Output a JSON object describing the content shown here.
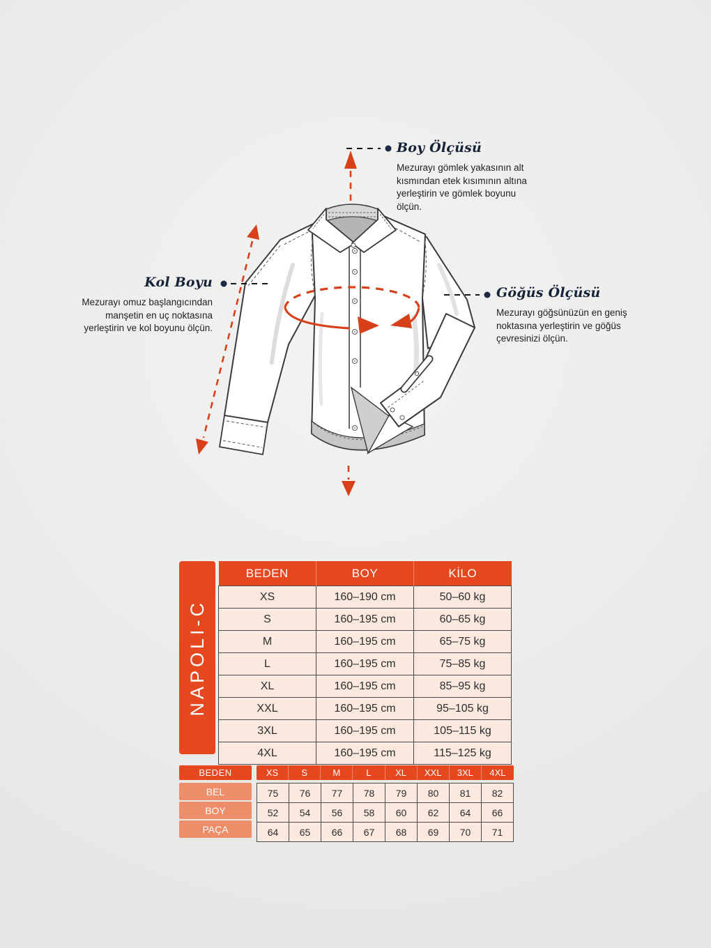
{
  "colors": {
    "accent": "#e5471f",
    "salmon": "#ee8d69",
    "cell_bg": "#fbe9e0",
    "arrow": "#d8401a",
    "dot": "#1c2a44",
    "heading": "#152238",
    "grid": "#4b4b4b",
    "text": "#2d2d2d"
  },
  "annotations": {
    "length": {
      "title": "Boy Ölçüsü",
      "lines": [
        "Mezurayı gömlek yakasının alt",
        "kısmından etek kısımının altına",
        "yerleştirin ve gömlek boyunu",
        "ölçün."
      ]
    },
    "sleeve": {
      "title": "Kol Boyu",
      "lines": [
        "Mezurayı omuz başlangıcından",
        "manşetin en uç noktasına",
        "yerleştirin ve kol boyunu ölçün."
      ]
    },
    "chest": {
      "title": "Göğüs Ölçüsü",
      "lines": [
        "Mezurayı göğsünüzün en geniş",
        "noktasına yerleştirin ve göğüs",
        "çevresinizi ölçün."
      ]
    }
  },
  "size_table": {
    "model": "NAPOLI-C",
    "headers": [
      "BEDEN",
      "BOY",
      "KİLO"
    ],
    "rows": [
      [
        "XS",
        "160–190 cm",
        "50–60 kg"
      ],
      [
        "S",
        "160–195 cm",
        "60–65 kg"
      ],
      [
        "M",
        "160–195 cm",
        "65–75 kg"
      ],
      [
        "L",
        "160–195 cm",
        "75–85 kg"
      ],
      [
        "XL",
        "160–195 cm",
        "85–95 kg"
      ],
      [
        "XXL",
        "160–195 cm",
        "95–105 kg"
      ],
      [
        "3XL",
        "160–195 cm",
        "105–115 kg"
      ],
      [
        "4XL",
        "160–195 cm",
        "115–125 kg"
      ]
    ]
  },
  "measure_table": {
    "corner_label": "BEDEN",
    "col_headers": [
      "XS",
      "S",
      "M",
      "L",
      "XL",
      "XXL",
      "3XL",
      "4XL"
    ],
    "rows": [
      {
        "label": "BEL",
        "values": [
          "75",
          "76",
          "77",
          "78",
          "79",
          "80",
          "81",
          "82"
        ]
      },
      {
        "label": "BOY",
        "values": [
          "52",
          "54",
          "56",
          "58",
          "60",
          "62",
          "64",
          "66"
        ]
      },
      {
        "label": "PAÇA",
        "values": [
          "64",
          "65",
          "66",
          "67",
          "68",
          "69",
          "70",
          "71"
        ]
      }
    ]
  }
}
